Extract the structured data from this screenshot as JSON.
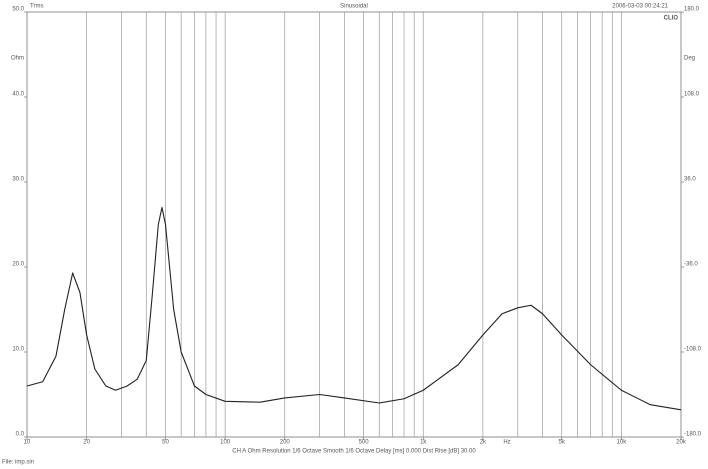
{
  "chart_data": {
    "type": "line",
    "title": "Sinusoidal",
    "header_left": "Trms",
    "timestamp": "2006-03-03 00:24:21",
    "brand": "CLIO",
    "y_label": "Ohm",
    "y2_label": "Deg",
    "x_label": "Hz",
    "footer": "CH A   Ohm    Resolution 1/6 Octave    Smooth 1/6 Octave    Delay [ms] 0.000    Dist Rise [dB] 30.00",
    "file": "File: imp.sin",
    "x_scale": "log",
    "xlim": [
      10,
      20000
    ],
    "xticks": [
      10,
      20,
      50,
      100,
      200,
      500,
      {
        "value": 1000,
        "label": "1k"
      },
      {
        "value": 2000,
        "label": "2k"
      },
      {
        "value": 5000,
        "label": "5k"
      },
      {
        "value": 10000,
        "label": "10k"
      },
      {
        "value": 20000,
        "label": "20k"
      }
    ],
    "xgrid": [
      20,
      30,
      40,
      50,
      60,
      70,
      80,
      90,
      100,
      200,
      300,
      400,
      500,
      600,
      700,
      800,
      900,
      1000,
      2000,
      3000,
      4000,
      5000,
      6000,
      7000,
      8000,
      9000,
      10000
    ],
    "ylim": [
      0,
      50
    ],
    "yticks": [
      {
        "value": 0,
        "label": "0.0"
      },
      {
        "value": 10,
        "label": "10.0"
      },
      {
        "value": 20,
        "label": "20.0"
      },
      {
        "value": 30,
        "label": "30.0"
      },
      {
        "value": 40,
        "label": "40.0"
      },
      {
        "value": 50,
        "label": "50.0"
      }
    ],
    "y2lim": [
      -180,
      180
    ],
    "y2ticks": [
      {
        "value": -180,
        "label": "-180.0"
      },
      {
        "value": -108,
        "label": "-108.0"
      },
      {
        "value": -36,
        "label": "-36.0"
      },
      {
        "value": 36,
        "label": "36.0"
      },
      {
        "value": 108,
        "label": "108.0"
      },
      {
        "value": 180,
        "label": "180.0"
      }
    ],
    "x": [
      10,
      12,
      14,
      15.5,
      17,
      18.5,
      20,
      22,
      25,
      28,
      32,
      36,
      40,
      43,
      46,
      48,
      50,
      55,
      60,
      70,
      80,
      100,
      150,
      200,
      300,
      400,
      600,
      800,
      1000,
      1500,
      2000,
      2500,
      3000,
      3500,
      4000,
      5000,
      7000,
      10000,
      14000,
      20000
    ],
    "series": [
      {
        "name": "Ohm",
        "color": "#222222",
        "values": [
          6.0,
          6.5,
          9.5,
          15,
          19.3,
          17,
          12,
          8,
          6,
          5.5,
          6.0,
          6.8,
          9,
          17,
          25,
          27,
          25,
          15,
          10,
          6,
          5,
          4.2,
          4.1,
          4.6,
          5.0,
          4.6,
          4.0,
          4.5,
          5.5,
          8.5,
          12,
          14.5,
          15.2,
          15.5,
          14.5,
          12,
          8.5,
          5.5,
          3.8,
          3.2
        ]
      }
    ]
  }
}
